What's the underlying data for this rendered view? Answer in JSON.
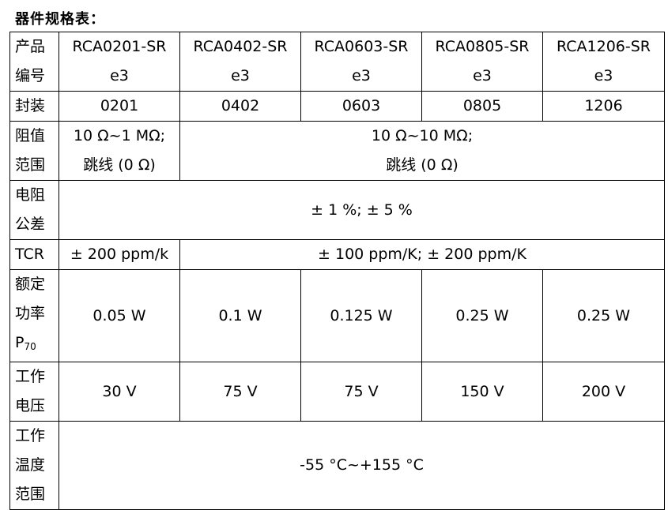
{
  "heading": "器件规格表：",
  "labels": {
    "model_l1": "产品",
    "model_l2": "编号",
    "package": "封装",
    "range_l1": "阻值",
    "range_l2": "范围",
    "tol_l1": "电阻",
    "tol_l2": "公差",
    "tcr": "TCR",
    "power_l1": "额定",
    "power_l2": "功率",
    "power_l3": "P",
    "power_sub": "70",
    "volt_l1": "工作",
    "volt_l2": "电压",
    "temp_l1": "工作",
    "temp_l2": "温度",
    "temp_l3": "范围"
  },
  "models": [
    {
      "l1": "RCA0201-SR",
      "l2": "e3"
    },
    {
      "l1": "RCA0402-SR",
      "l2": "e3"
    },
    {
      "l1": "RCA0603-SR",
      "l2": "e3"
    },
    {
      "l1": "RCA0805-SR",
      "l2": "e3"
    },
    {
      "l1": "RCA1206-SR",
      "l2": "e3"
    }
  ],
  "packages": [
    "0201",
    "0402",
    "0603",
    "0805",
    "1206"
  ],
  "range": {
    "first_l1": "10 Ω~1 MΩ;",
    "first_l2": "跳线  (0 Ω)",
    "rest_l1": "10 Ω~10 MΩ;",
    "rest_l2": "跳线  (0 Ω)"
  },
  "tolerance": "± 1 %; ± 5 %",
  "tcr": {
    "first": "± 200 ppm/k",
    "rest": "± 100 ppm/K; ± 200 ppm/K"
  },
  "power": [
    "0.05 W",
    "0.1 W",
    "0.125 W",
    "0.25 W",
    "0.25 W"
  ],
  "voltage": [
    "30 V",
    "75 V",
    "75 V",
    "150 V",
    "200 V"
  ],
  "temperature": "-55 °C~+155 °C"
}
